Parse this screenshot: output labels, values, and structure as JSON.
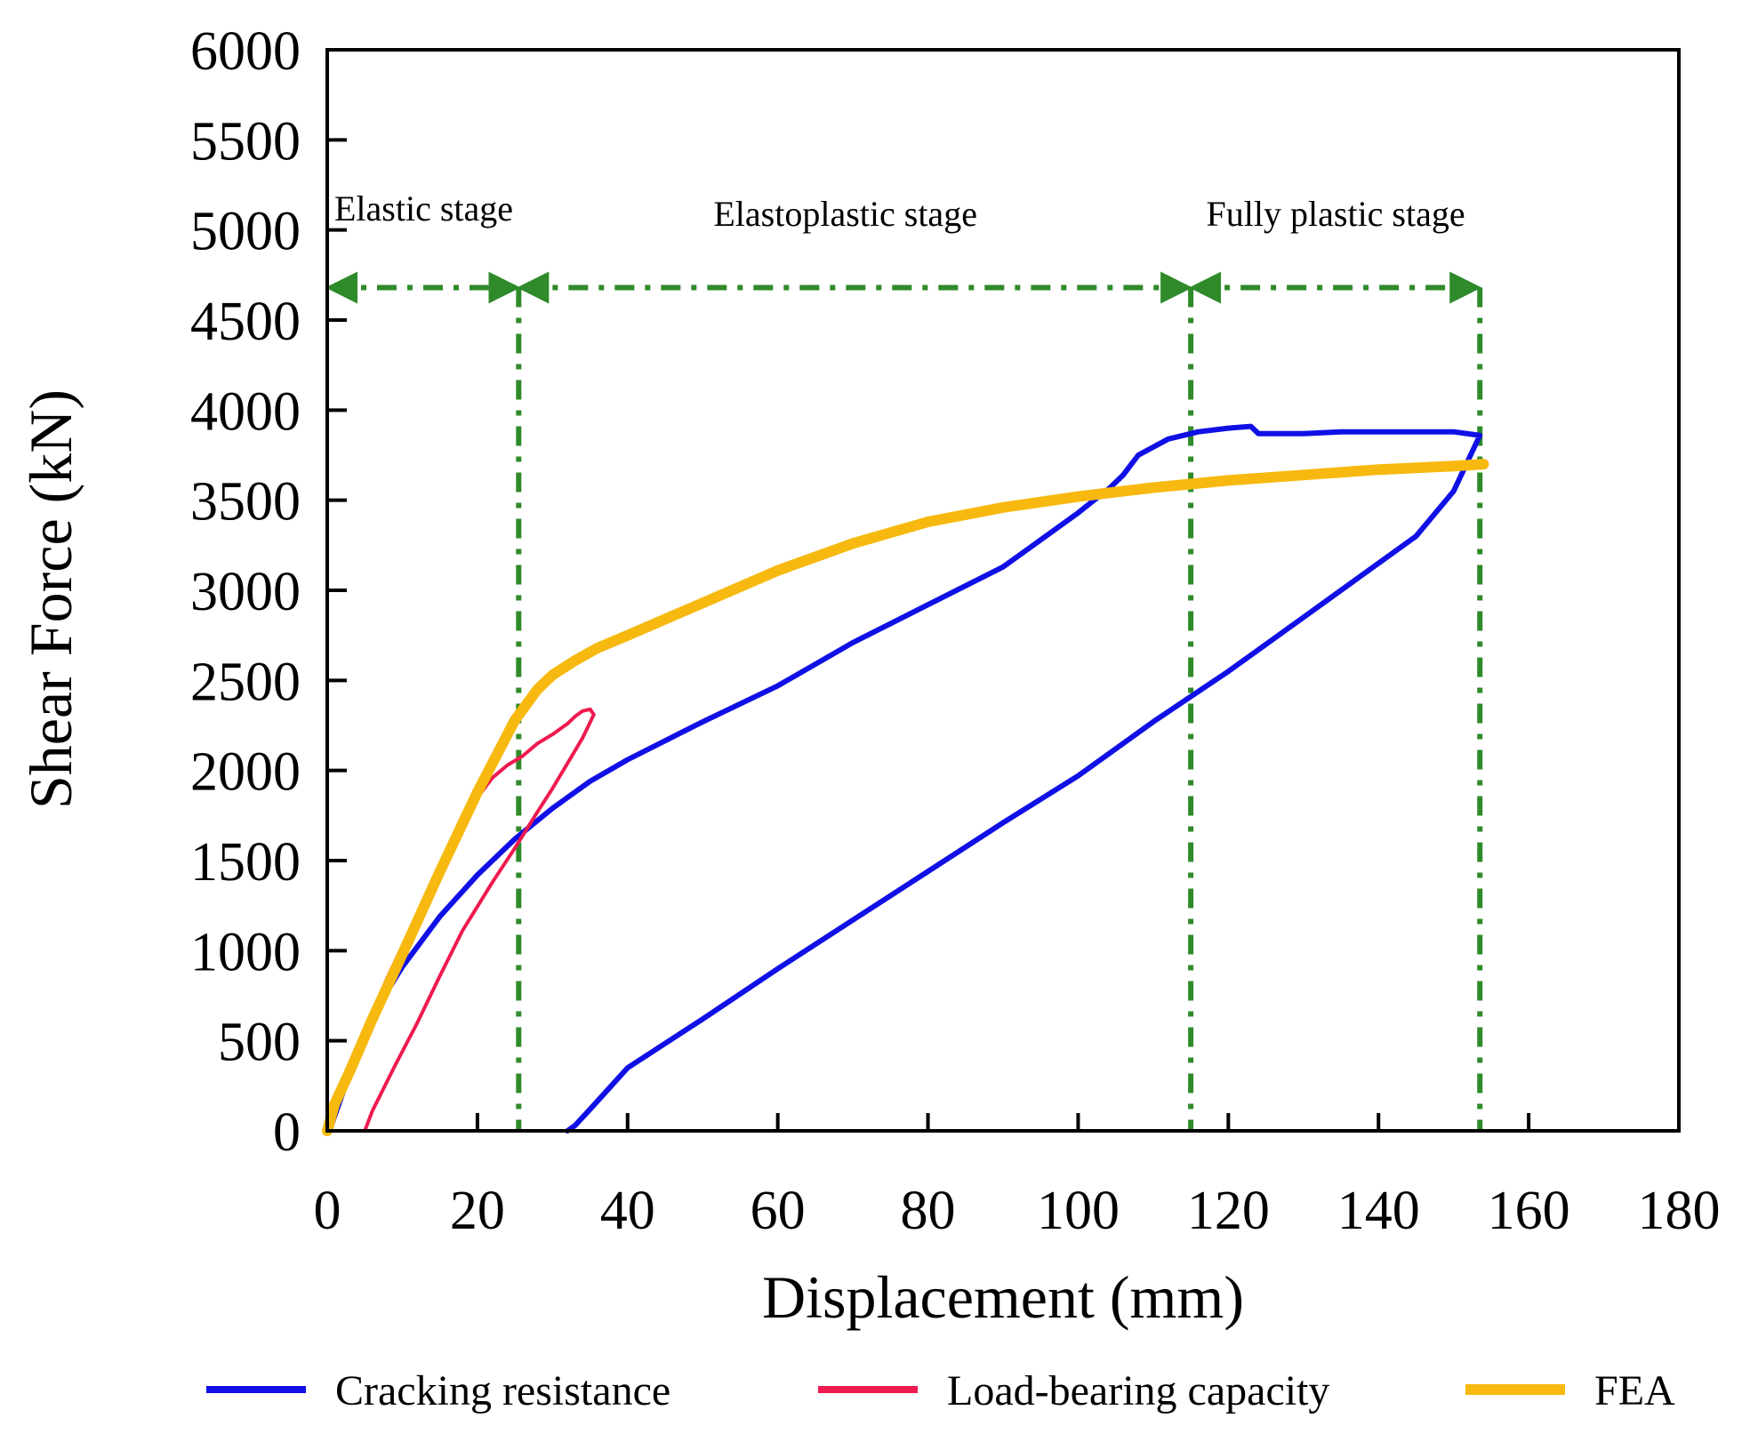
{
  "chart_data": {
    "type": "line",
    "title": "",
    "xlabel": "Displacement (mm)",
    "ylabel": "Shear Force (kN)",
    "xlim": [
      0,
      180
    ],
    "ylim": [
      0,
      6000
    ],
    "xticks": [
      0,
      20,
      40,
      60,
      80,
      100,
      120,
      140,
      160,
      180
    ],
    "yticks": [
      0,
      500,
      1000,
      1500,
      2000,
      2500,
      3000,
      3500,
      4000,
      4500,
      5000,
      5500,
      6000
    ],
    "grid": false,
    "legend_position": "bottom",
    "series": [
      {
        "name": "Cracking resistance",
        "color": "#1010e6",
        "x": [
          0.3,
          3,
          6,
          10,
          15,
          20,
          25,
          30,
          35,
          40,
          50,
          60,
          70,
          80,
          90,
          100,
          103,
          104,
          105,
          106,
          108,
          112,
          116,
          120,
          123,
          124,
          126,
          130,
          135,
          140,
          145,
          150,
          153.5,
          150,
          145,
          140,
          130,
          120,
          110,
          100,
          90,
          80,
          70,
          60,
          50,
          40,
          35,
          33,
          32
        ],
        "y": [
          0,
          320,
          640,
          910,
          1190,
          1420,
          1620,
          1790,
          1940,
          2060,
          2270,
          2470,
          2710,
          2920,
          3130,
          3430,
          3530,
          3560,
          3600,
          3640,
          3750,
          3840,
          3880,
          3900,
          3910,
          3870,
          3870,
          3870,
          3880,
          3880,
          3880,
          3880,
          3860,
          3550,
          3300,
          3150,
          2850,
          2550,
          2270,
          1970,
          1710,
          1440,
          1170,
          900,
          620,
          350,
          120,
          30,
          0
        ]
      },
      {
        "name": "Load-bearing capacity",
        "color": "#ef1a4f",
        "x": [
          0.3,
          2,
          5,
          8,
          12,
          15,
          18,
          20,
          22,
          24,
          26,
          28,
          30,
          32,
          33,
          34,
          35,
          35.5,
          34,
          32,
          30,
          28,
          25,
          22,
          18,
          15,
          12,
          9,
          6,
          5
        ],
        "y": [
          0,
          250,
          550,
          850,
          1200,
          1450,
          1700,
          1850,
          1960,
          2030,
          2080,
          2150,
          2200,
          2260,
          2300,
          2330,
          2340,
          2310,
          2180,
          2040,
          1900,
          1770,
          1570,
          1380,
          1110,
          860,
          600,
          360,
          110,
          0
        ]
      },
      {
        "name": "FEA",
        "color": "#f7b90f",
        "x": [
          0,
          1,
          3,
          6,
          10,
          15,
          20,
          25,
          28,
          30,
          33,
          36,
          40,
          50,
          60,
          70,
          80,
          90,
          100,
          110,
          120,
          130,
          140,
          150,
          154
        ],
        "y": [
          0,
          150,
          330,
          620,
          980,
          1440,
          1880,
          2280,
          2450,
          2530,
          2610,
          2680,
          2750,
          2930,
          3110,
          3260,
          3380,
          3460,
          3520,
          3570,
          3610,
          3640,
          3670,
          3690,
          3700
        ]
      }
    ],
    "stage_markers": {
      "color": "#2f8a2a",
      "boundaries": [
        0,
        25.5,
        115,
        153.5
      ],
      "arrow_y": 4680,
      "labels": [
        "Elastic stage",
        "Elastoplastic stage",
        "Fully plastic stage"
      ]
    }
  }
}
